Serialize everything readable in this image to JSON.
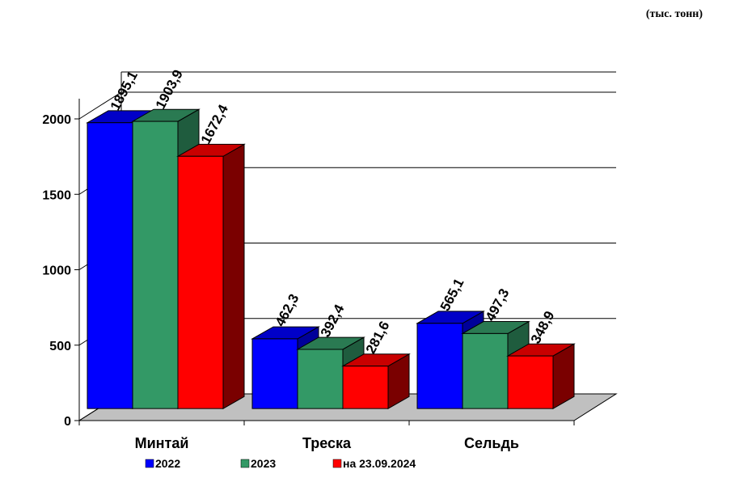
{
  "unit_note": "(тыс. тонн)",
  "chart_data": {
    "type": "bar",
    "categories": [
      "Минтай",
      "Треска",
      "Сельдь"
    ],
    "series": [
      {
        "name": "2022",
        "values": [
          1895.1,
          462.3,
          565.1
        ],
        "labels": [
          "1895,1",
          "462,3",
          "565,1"
        ],
        "color": "#0000ff",
        "top_color": "#0000c8",
        "side_color": "#00009a"
      },
      {
        "name": "2023",
        "values": [
          1903.9,
          392.4,
          497.3
        ],
        "labels": [
          "1903,9",
          "392,4",
          "497,3"
        ],
        "color": "#339966",
        "top_color": "#2a7a52",
        "side_color": "#1f5c3e"
      },
      {
        "name": "на 23.09.2024",
        "values": [
          1672.4,
          281.6,
          348.9
        ],
        "labels": [
          "1672,4",
          "281,6",
          "348,9"
        ],
        "color": "#ff0000",
        "top_color": "#c80000",
        "side_color": "#7a0000"
      }
    ],
    "yticks": [
      0,
      500,
      1000,
      1500,
      2000
    ],
    "ylim": [
      0,
      2000
    ],
    "grid": true,
    "legend_position": "bottom",
    "floor_color": "#c0c0c0"
  }
}
